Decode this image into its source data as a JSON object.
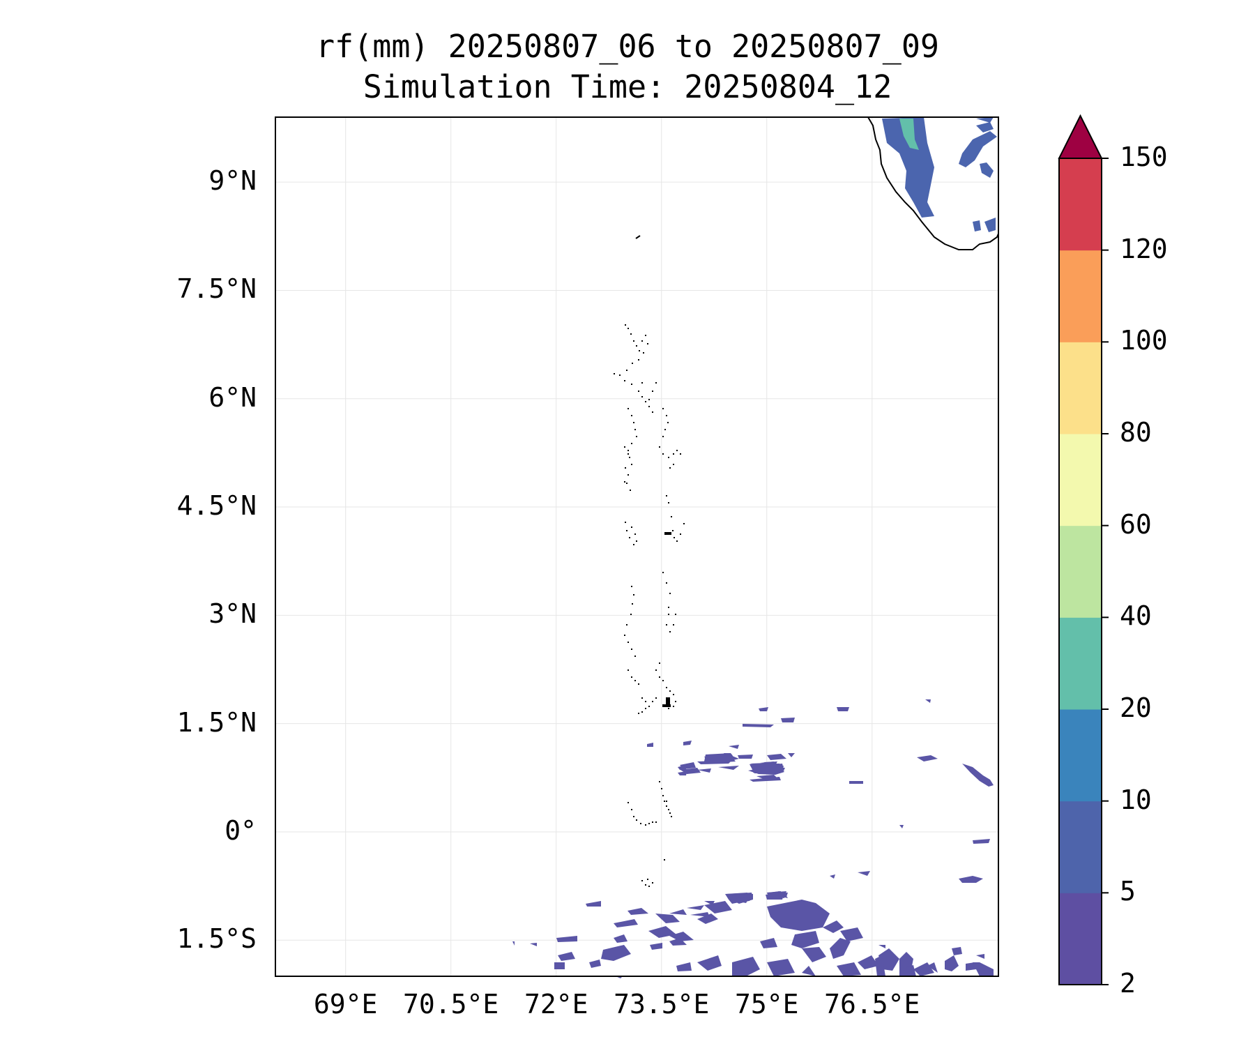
{
  "title": {
    "line1": "rf(mm) 20250807_06 to 20250807_09",
    "line2": "Simulation Time: 20250804_12"
  },
  "map": {
    "lon_range": [
      68.0,
      78.3
    ],
    "lat_range": [
      -2.0,
      9.9
    ],
    "lat_ticks": [
      {
        "value": 9,
        "label": "9°N"
      },
      {
        "value": 7.5,
        "label": "7.5°N"
      },
      {
        "value": 6,
        "label": "6°N"
      },
      {
        "value": 4.5,
        "label": "4.5°N"
      },
      {
        "value": 3,
        "label": "3°N"
      },
      {
        "value": 1.5,
        "label": "1.5°N"
      },
      {
        "value": 0,
        "label": "0°"
      },
      {
        "value": -1.5,
        "label": "1.5°S"
      }
    ],
    "lon_ticks": [
      {
        "value": 69,
        "label": "69°E"
      },
      {
        "value": 70.5,
        "label": "70.5°E"
      },
      {
        "value": 72,
        "label": "72°E"
      },
      {
        "value": 73.5,
        "label": "73.5°E"
      },
      {
        "value": 75,
        "label": "75°E"
      },
      {
        "value": 76.5,
        "label": "76.5°E"
      }
    ],
    "gridlines": true
  },
  "colorbar": {
    "levels": [
      {
        "label": "2",
        "color": "#5e4fa2"
      },
      {
        "label": "5",
        "color": "#4e64ab"
      },
      {
        "label": "10",
        "color": "#3a84bc"
      },
      {
        "label": "20",
        "color": "#63bfaa"
      },
      {
        "label": "40",
        "color": "#bde5a0"
      },
      {
        "label": "60",
        "color": "#f3f9ae"
      },
      {
        "label": "80",
        "color": "#fce08a"
      },
      {
        "label": "100",
        "color": "#fa9e59"
      },
      {
        "label": "120",
        "color": "#d53e4f"
      },
      {
        "label": "150",
        "color": "#9e0142"
      }
    ],
    "extend": "max"
  },
  "rain_colors": {
    "light": "#5a55a6",
    "moderate": "#4b65ae",
    "heavy": "#63bfaa"
  }
}
